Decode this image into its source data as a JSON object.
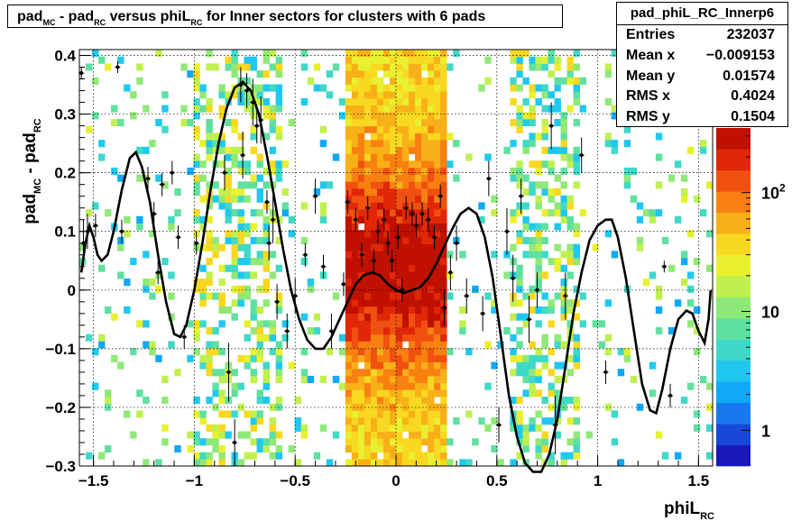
{
  "title": {
    "pre": "pad",
    "sub1": "MC",
    "mid": " - pad",
    "sub2": "RC",
    "post": " versus phiL",
    "sub3": "RC",
    "tail": " for Inner sectors for clusters with 6 pads"
  },
  "stats": {
    "name": "pad_phiL_RC_Innerp6",
    "rows": [
      {
        "label": "Entries",
        "value": "232037"
      },
      {
        "label": "Mean x",
        "value": "−0.009153"
      },
      {
        "label": "Mean y",
        "value": "0.01574"
      },
      {
        "label": "RMS x",
        "value": "0.4024"
      },
      {
        "label": "RMS y",
        "value": "0.1504"
      }
    ]
  },
  "chart_data": {
    "type": "heatmap",
    "xlabel": {
      "base": "phiL",
      "sub": "RC"
    },
    "ylabel": {
      "base1": "pad",
      "sub1": "MC",
      "base2": " - pad",
      "sub2": "RC"
    },
    "xlim": [
      -1.57,
      1.57
    ],
    "ylim": [
      -0.3,
      0.41
    ],
    "x_ticks": [
      {
        "v": -1.5,
        "label": "−1.5"
      },
      {
        "v": -1.0,
        "label": "−1"
      },
      {
        "v": -0.5,
        "label": "−0.5"
      },
      {
        "v": 0.0,
        "label": "0"
      },
      {
        "v": 0.5,
        "label": "0.5"
      },
      {
        "v": 1.0,
        "label": "1"
      },
      {
        "v": 1.5,
        "label": "1.5"
      }
    ],
    "y_ticks": [
      {
        "v": -0.3,
        "label": "−0.3"
      },
      {
        "v": -0.2,
        "label": "−0.2"
      },
      {
        "v": -0.1,
        "label": "−0.1"
      },
      {
        "v": 0.0,
        "label": "0"
      },
      {
        "v": 0.1,
        "label": "0.1"
      },
      {
        "v": 0.2,
        "label": "0.2"
      },
      {
        "v": 0.3,
        "label": "0.3"
      },
      {
        "v": 0.4,
        "label": "0.4"
      }
    ],
    "grid": true,
    "color_scale": {
      "log": true,
      "min": 0.5,
      "max": 350,
      "ticks": [
        {
          "v": 1,
          "label": "1"
        },
        {
          "v": 10,
          "label": "10"
        },
        {
          "v": 100,
          "label": "10",
          "sup": "2"
        }
      ],
      "palette": [
        "#1818b8",
        "#1848d8",
        "#1878f0",
        "#10a8f8",
        "#20c8f0",
        "#40d8c8",
        "#60e0a0",
        "#90e878",
        "#c0f050",
        "#e8f030",
        "#f8d820",
        "#f8b018",
        "#f88010",
        "#f05010",
        "#e02808",
        "#c01000"
      ]
    },
    "density_regions": [
      {
        "x": [
          -1.57,
          -1.0
        ],
        "level": "low",
        "note": "sparse"
      },
      {
        "x": [
          -1.0,
          -0.55
        ],
        "level": "medium"
      },
      {
        "x": [
          -0.55,
          -0.25
        ],
        "level": "low"
      },
      {
        "x": [
          -0.25,
          0.25
        ],
        "level": "high"
      },
      {
        "x": [
          0.25,
          0.55
        ],
        "level": "low"
      },
      {
        "x": [
          0.55,
          0.9
        ],
        "level": "medium"
      },
      {
        "x": [
          0.9,
          1.57
        ],
        "level": "low"
      }
    ],
    "curve": {
      "type": "line",
      "points": [
        [
          -1.56,
          0.03
        ],
        [
          -1.54,
          0.08
        ],
        [
          -1.52,
          0.11
        ],
        [
          -1.5,
          0.09
        ],
        [
          -1.48,
          0.06
        ],
        [
          -1.46,
          0.05
        ],
        [
          -1.43,
          0.06
        ],
        [
          -1.4,
          0.1
        ],
        [
          -1.36,
          0.17
        ],
        [
          -1.32,
          0.225
        ],
        [
          -1.29,
          0.235
        ],
        [
          -1.26,
          0.21
        ],
        [
          -1.22,
          0.15
        ],
        [
          -1.18,
          0.06
        ],
        [
          -1.14,
          -0.02
        ],
        [
          -1.1,
          -0.075
        ],
        [
          -1.07,
          -0.08
        ],
        [
          -1.04,
          -0.06
        ],
        [
          -1.0,
          0.0
        ],
        [
          -0.96,
          0.08
        ],
        [
          -0.92,
          0.17
        ],
        [
          -0.88,
          0.25
        ],
        [
          -0.84,
          0.31
        ],
        [
          -0.8,
          0.345
        ],
        [
          -0.76,
          0.355
        ],
        [
          -0.72,
          0.34
        ],
        [
          -0.68,
          0.3
        ],
        [
          -0.64,
          0.23
        ],
        [
          -0.6,
          0.15
        ],
        [
          -0.56,
          0.07
        ],
        [
          -0.52,
          0.0
        ],
        [
          -0.48,
          -0.05
        ],
        [
          -0.44,
          -0.085
        ],
        [
          -0.4,
          -0.1
        ],
        [
          -0.36,
          -0.1
        ],
        [
          -0.32,
          -0.08
        ],
        [
          -0.28,
          -0.05
        ],
        [
          -0.24,
          -0.02
        ],
        [
          -0.2,
          0.01
        ],
        [
          -0.16,
          0.025
        ],
        [
          -0.12,
          0.03
        ],
        [
          -0.08,
          0.025
        ],
        [
          -0.04,
          0.01
        ],
        [
          0.0,
          0.0
        ],
        [
          0.04,
          -0.005
        ],
        [
          0.08,
          0.0
        ],
        [
          0.12,
          0.005
        ],
        [
          0.16,
          0.02
        ],
        [
          0.2,
          0.045
        ],
        [
          0.24,
          0.075
        ],
        [
          0.28,
          0.105
        ],
        [
          0.32,
          0.13
        ],
        [
          0.36,
          0.14
        ],
        [
          0.4,
          0.13
        ],
        [
          0.44,
          0.09
        ],
        [
          0.48,
          0.02
        ],
        [
          0.52,
          -0.08
        ],
        [
          0.56,
          -0.18
        ],
        [
          0.6,
          -0.25
        ],
        [
          0.64,
          -0.295
        ],
        [
          0.68,
          -0.31
        ],
        [
          0.72,
          -0.31
        ],
        [
          0.76,
          -0.28
        ],
        [
          0.8,
          -0.22
        ],
        [
          0.84,
          -0.13
        ],
        [
          0.88,
          -0.04
        ],
        [
          0.92,
          0.03
        ],
        [
          0.96,
          0.085
        ],
        [
          1.0,
          0.11
        ],
        [
          1.04,
          0.12
        ],
        [
          1.07,
          0.12
        ],
        [
          1.1,
          0.09
        ],
        [
          1.14,
          0.02
        ],
        [
          1.18,
          -0.07
        ],
        [
          1.22,
          -0.16
        ],
        [
          1.26,
          -0.205
        ],
        [
          1.29,
          -0.21
        ],
        [
          1.32,
          -0.17
        ],
        [
          1.36,
          -0.1
        ],
        [
          1.4,
          -0.05
        ],
        [
          1.44,
          -0.035
        ],
        [
          1.47,
          -0.04
        ],
        [
          1.5,
          -0.07
        ],
        [
          1.53,
          -0.09
        ],
        [
          1.55,
          -0.05
        ],
        [
          1.56,
          0.0
        ]
      ]
    },
    "profile_points": [
      {
        "x": -1.56,
        "y": 0.37,
        "e": 0.01
      },
      {
        "x": -1.55,
        "y": 0.08,
        "e": 0.04
      },
      {
        "x": -1.53,
        "y": 0.1,
        "e": 0.03
      },
      {
        "x": -1.49,
        "y": 0.11,
        "e": 0.02
      },
      {
        "x": -1.38,
        "y": 0.38,
        "e": 0.01
      },
      {
        "x": -1.36,
        "y": 0.1,
        "e": 0.02
      },
      {
        "x": -1.23,
        "y": 0.19,
        "e": 0.02
      },
      {
        "x": -1.2,
        "y": 0.13,
        "e": 0.02
      },
      {
        "x": -1.18,
        "y": 0.03,
        "e": 0.02
      },
      {
        "x": -1.16,
        "y": 0.18,
        "e": 0.02
      },
      {
        "x": -1.11,
        "y": 0.2,
        "e": 0.02
      },
      {
        "x": -1.08,
        "y": 0.09,
        "e": 0.02
      },
      {
        "x": -1.05,
        "y": -0.08,
        "e": 0.02
      },
      {
        "x": -0.99,
        "y": 0.08,
        "e": 0.02
      },
      {
        "x": -0.85,
        "y": 0.2,
        "e": 0.03
      },
      {
        "x": -0.83,
        "y": -0.14,
        "e": 0.05
      },
      {
        "x": -0.8,
        "y": -0.26,
        "e": 0.04
      },
      {
        "x": -0.77,
        "y": 0.35,
        "e": 0.03
      },
      {
        "x": -0.76,
        "y": 0.23,
        "e": 0.04
      },
      {
        "x": -0.74,
        "y": 0.34,
        "e": 0.03
      },
      {
        "x": -0.71,
        "y": 0.32,
        "e": 0.04
      },
      {
        "x": -0.69,
        "y": 0.28,
        "e": 0.03
      },
      {
        "x": -0.67,
        "y": 0.29,
        "e": 0.04
      },
      {
        "x": -0.64,
        "y": 0.15,
        "e": 0.02
      },
      {
        "x": -0.63,
        "y": 0.08,
        "e": 0.03
      },
      {
        "x": -0.61,
        "y": 0.12,
        "e": 0.04
      },
      {
        "x": -0.59,
        "y": -0.02,
        "e": 0.03
      },
      {
        "x": -0.54,
        "y": -0.07,
        "e": 0.03
      },
      {
        "x": -0.5,
        "y": -0.01,
        "e": 0.03
      },
      {
        "x": -0.45,
        "y": 0.06,
        "e": 0.02
      },
      {
        "x": -0.4,
        "y": 0.16,
        "e": 0.03
      },
      {
        "x": -0.36,
        "y": 0.04,
        "e": 0.02
      },
      {
        "x": -0.32,
        "y": -0.07,
        "e": 0.03
      },
      {
        "x": -0.26,
        "y": 0.01,
        "e": 0.02
      },
      {
        "x": -0.24,
        "y": 0.15,
        "e": 0.02
      },
      {
        "x": -0.2,
        "y": 0.12,
        "e": 0.02
      },
      {
        "x": -0.17,
        "y": 0.06,
        "e": 0.02
      },
      {
        "x": -0.14,
        "y": 0.14,
        "e": 0.02
      },
      {
        "x": -0.11,
        "y": 0.05,
        "e": 0.02
      },
      {
        "x": -0.09,
        "y": 0.1,
        "e": 0.02
      },
      {
        "x": -0.06,
        "y": 0.12,
        "e": 0.02
      },
      {
        "x": -0.04,
        "y": 0.08,
        "e": 0.02
      },
      {
        "x": -0.02,
        "y": 0.05,
        "e": 0.02
      },
      {
        "x": 0.01,
        "y": 0.09,
        "e": 0.02
      },
      {
        "x": 0.03,
        "y": 0.0,
        "e": 0.02
      },
      {
        "x": 0.05,
        "y": 0.14,
        "e": 0.02
      },
      {
        "x": 0.08,
        "y": 0.13,
        "e": 0.02
      },
      {
        "x": 0.1,
        "y": 0.11,
        "e": 0.02
      },
      {
        "x": 0.13,
        "y": 0.13,
        "e": 0.02
      },
      {
        "x": 0.16,
        "y": 0.12,
        "e": 0.02
      },
      {
        "x": 0.19,
        "y": 0.09,
        "e": 0.02
      },
      {
        "x": 0.22,
        "y": 0.16,
        "e": 0.02
      },
      {
        "x": 0.24,
        "y": -0.03,
        "e": 0.03
      },
      {
        "x": 0.27,
        "y": 0.03,
        "e": 0.03
      },
      {
        "x": 0.3,
        "y": 0.08,
        "e": 0.03
      },
      {
        "x": 0.35,
        "y": -0.01,
        "e": 0.03
      },
      {
        "x": 0.43,
        "y": -0.04,
        "e": 0.03
      },
      {
        "x": 0.46,
        "y": 0.19,
        "e": 0.03
      },
      {
        "x": 0.51,
        "y": -0.23,
        "e": 0.03
      },
      {
        "x": 0.55,
        "y": 0.1,
        "e": 0.04
      },
      {
        "x": 0.58,
        "y": 0.02,
        "e": 0.04
      },
      {
        "x": 0.62,
        "y": 0.16,
        "e": 0.03
      },
      {
        "x": 0.66,
        "y": -0.05,
        "e": 0.04
      },
      {
        "x": 0.7,
        "y": 0.0,
        "e": 0.03
      },
      {
        "x": 0.77,
        "y": 0.28,
        "e": 0.04
      },
      {
        "x": 0.79,
        "y": -0.23,
        "e": 0.05
      },
      {
        "x": 0.84,
        "y": -0.01,
        "e": 0.04
      },
      {
        "x": 0.92,
        "y": 0.23,
        "e": 0.03
      },
      {
        "x": 1.04,
        "y": -0.14,
        "e": 0.02
      },
      {
        "x": 1.33,
        "y": 0.04,
        "e": 0.01
      },
      {
        "x": 1.36,
        "y": -0.18,
        "e": 0.02
      }
    ]
  }
}
